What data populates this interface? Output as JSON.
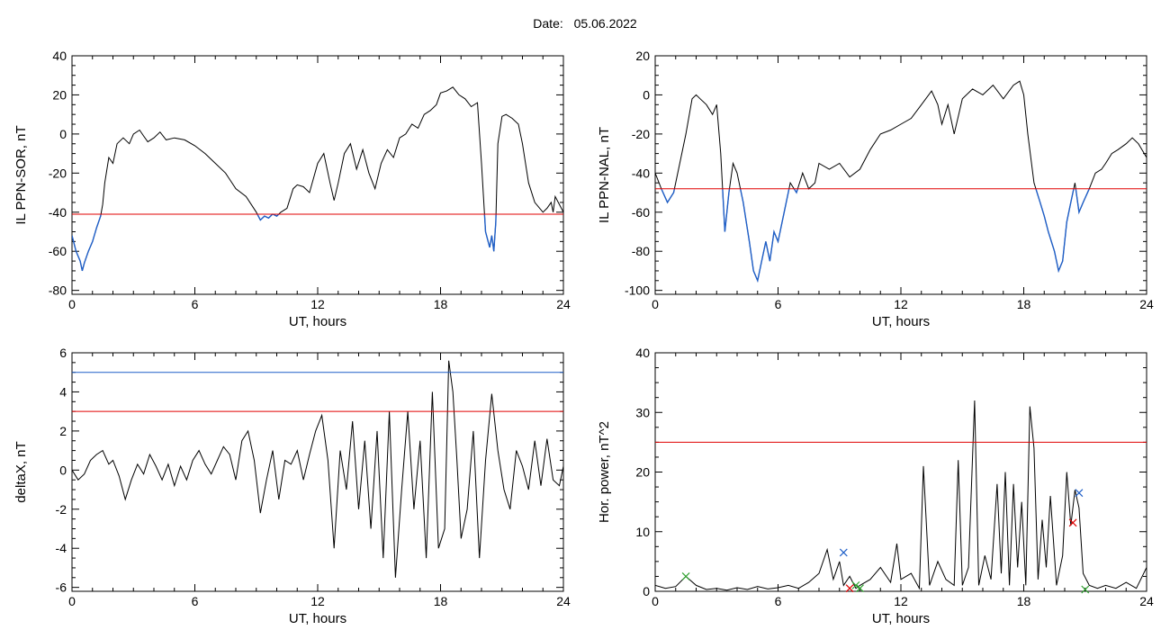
{
  "header": {
    "date_label": "Date:",
    "date_value": "05.06.2022"
  },
  "colors": {
    "trace": "#000000",
    "below_threshold": "#1f5fc8",
    "red_level": "#e00000",
    "blue_level": "#1f5fc8",
    "marker_green": "#2ca02c"
  },
  "chart_data": [
    {
      "id": "il-ppn-sor",
      "type": "line",
      "title": "",
      "xlabel": "UT, hours",
      "ylabel": "IL PPN-SOR, nT",
      "xlim": [
        0,
        24
      ],
      "ylim": [
        -82,
        40
      ],
      "xticks": [
        0,
        6,
        12,
        18,
        24
      ],
      "yticks": [
        -80,
        -60,
        -40,
        -20,
        0,
        20,
        40
      ],
      "thresholds": [
        {
          "y": -41,
          "color": "red"
        }
      ],
      "highlight_below": -41,
      "x": [
        0,
        0.2,
        0.4,
        0.5,
        0.6,
        0.8,
        1.0,
        1.2,
        1.4,
        1.5,
        1.6,
        1.8,
        2.0,
        2.2,
        2.5,
        2.8,
        3.0,
        3.3,
        3.5,
        3.7,
        4.0,
        4.3,
        4.6,
        5.0,
        5.5,
        6.0,
        6.5,
        7.0,
        7.5,
        8.0,
        8.5,
        9.0,
        9.2,
        9.4,
        9.6,
        9.8,
        10.0,
        10.2,
        10.5,
        10.8,
        11.0,
        11.3,
        11.6,
        12.0,
        12.3,
        12.6,
        12.8,
        13.0,
        13.3,
        13.6,
        13.9,
        14.2,
        14.5,
        14.8,
        15.1,
        15.4,
        15.7,
        16.0,
        16.3,
        16.6,
        16.9,
        17.2,
        17.5,
        17.8,
        18.0,
        18.3,
        18.6,
        18.9,
        19.2,
        19.5,
        19.8,
        20.0,
        20.2,
        20.4,
        20.5,
        20.6,
        20.7,
        20.8,
        21.0,
        21.2,
        21.5,
        21.8,
        22.0,
        22.3,
        22.6,
        23.0,
        23.2,
        23.4,
        23.5,
        23.6,
        23.8,
        24.0
      ],
      "y": [
        -52,
        -60,
        -65,
        -70,
        -66,
        -60,
        -55,
        -48,
        -42,
        -36,
        -25,
        -12,
        -15,
        -5,
        -2,
        -5,
        0,
        2,
        -1,
        -4,
        -2,
        1,
        -3,
        -2,
        -3,
        -6,
        -10,
        -15,
        -20,
        -28,
        -32,
        -40,
        -44,
        -42,
        -43,
        -41,
        -42,
        -40,
        -38,
        -28,
        -26,
        -27,
        -30,
        -15,
        -10,
        -25,
        -34,
        -25,
        -10,
        -5,
        -18,
        -8,
        -20,
        -28,
        -15,
        -8,
        -12,
        -2,
        0,
        5,
        3,
        10,
        12,
        15,
        21,
        22,
        24,
        20,
        18,
        14,
        16,
        -15,
        -50,
        -58,
        -52,
        -60,
        -45,
        -5,
        9,
        10,
        8,
        5,
        -5,
        -25,
        -35,
        -40,
        -38,
        -35,
        -40,
        -32,
        -36,
        -40
      ]
    },
    {
      "id": "il-ppn-nal",
      "type": "line",
      "title": "",
      "xlabel": "UT, hours",
      "ylabel": "IL PPN-NAL, nT",
      "xlim": [
        0,
        24
      ],
      "ylim": [
        -102,
        20
      ],
      "xticks": [
        0,
        6,
        12,
        18,
        24
      ],
      "yticks": [
        -100,
        -80,
        -60,
        -40,
        -20,
        0,
        20
      ],
      "thresholds": [
        {
          "y": -48,
          "color": "red"
        }
      ],
      "highlight_below": -48,
      "x": [
        0,
        0.3,
        0.6,
        0.9,
        1.2,
        1.5,
        1.8,
        2.0,
        2.2,
        2.5,
        2.8,
        3.0,
        3.2,
        3.4,
        3.6,
        3.8,
        4.0,
        4.3,
        4.6,
        4.8,
        5.0,
        5.2,
        5.4,
        5.6,
        5.8,
        6.0,
        6.3,
        6.6,
        6.9,
        7.2,
        7.5,
        7.8,
        8.0,
        8.5,
        9.0,
        9.5,
        10.0,
        10.5,
        11.0,
        11.5,
        12.0,
        12.5,
        13.0,
        13.5,
        13.8,
        14.0,
        14.3,
        14.6,
        15.0,
        15.5,
        16.0,
        16.5,
        17.0,
        17.5,
        17.8,
        18.0,
        18.2,
        18.5,
        18.8,
        19.0,
        19.2,
        19.5,
        19.7,
        19.9,
        20.1,
        20.3,
        20.5,
        20.7,
        20.9,
        21.2,
        21.5,
        21.8,
        22.0,
        22.3,
        22.6,
        23.0,
        23.3,
        23.6,
        24.0
      ],
      "y": [
        -40,
        -48,
        -55,
        -50,
        -35,
        -20,
        -2,
        0,
        -2,
        -5,
        -10,
        -5,
        -30,
        -70,
        -50,
        -35,
        -40,
        -55,
        -75,
        -90,
        -95,
        -85,
        -75,
        -85,
        -70,
        -75,
        -60,
        -45,
        -50,
        -40,
        -48,
        -45,
        -35,
        -38,
        -35,
        -42,
        -38,
        -28,
        -20,
        -18,
        -15,
        -12,
        -5,
        2,
        -5,
        -15,
        -5,
        -20,
        -2,
        3,
        0,
        5,
        -2,
        5,
        7,
        0,
        -20,
        -45,
        -55,
        -62,
        -70,
        -80,
        -90,
        -85,
        -65,
        -55,
        -45,
        -60,
        -55,
        -48,
        -40,
        -38,
        -35,
        -30,
        -28,
        -25,
        -22,
        -25,
        -32
      ]
    },
    {
      "id": "delta-x",
      "type": "line",
      "title": "",
      "xlabel": "UT, hours",
      "ylabel": "deltaX, nT",
      "xlim": [
        0,
        24
      ],
      "ylim": [
        -6.2,
        6
      ],
      "xticks": [
        0,
        6,
        12,
        18,
        24
      ],
      "yticks": [
        -6,
        -4,
        -2,
        0,
        2,
        4,
        6
      ],
      "thresholds": [
        {
          "y": 5.0,
          "color": "blue"
        },
        {
          "y": 3.0,
          "color": "red"
        }
      ],
      "x": [
        0,
        0.3,
        0.6,
        0.9,
        1.2,
        1.5,
        1.8,
        2.0,
        2.3,
        2.6,
        2.9,
        3.2,
        3.5,
        3.8,
        4.1,
        4.4,
        4.7,
        5.0,
        5.3,
        5.6,
        5.9,
        6.2,
        6.5,
        6.8,
        7.1,
        7.4,
        7.7,
        8.0,
        8.3,
        8.6,
        8.9,
        9.2,
        9.5,
        9.8,
        10.1,
        10.4,
        10.7,
        11.0,
        11.3,
        11.6,
        11.9,
        12.2,
        12.5,
        12.8,
        13.1,
        13.4,
        13.7,
        14.0,
        14.3,
        14.6,
        14.9,
        15.2,
        15.5,
        15.8,
        16.1,
        16.4,
        16.7,
        17.0,
        17.3,
        17.6,
        17.9,
        18.2,
        18.4,
        18.6,
        18.8,
        19.0,
        19.3,
        19.6,
        19.9,
        20.2,
        20.5,
        20.8,
        21.1,
        21.4,
        21.7,
        22.0,
        22.3,
        22.6,
        22.9,
        23.2,
        23.5,
        23.8,
        24.0
      ],
      "y": [
        0,
        -0.5,
        -0.2,
        0.5,
        0.8,
        1.0,
        0.3,
        0.5,
        -0.3,
        -1.5,
        -0.5,
        0.3,
        -0.2,
        0.8,
        0.2,
        -0.5,
        0.3,
        -0.8,
        0.2,
        -0.5,
        0.5,
        1.0,
        0.3,
        -0.2,
        0.5,
        1.2,
        0.8,
        -0.5,
        1.5,
        2.0,
        0.5,
        -2.2,
        -0.5,
        1.0,
        -1.5,
        0.5,
        0.3,
        1.0,
        -0.5,
        0.8,
        2.0,
        2.8,
        0.5,
        -4.0,
        1.0,
        -1.0,
        2.5,
        -2.0,
        1.5,
        -3.0,
        2.0,
        -4.5,
        3.0,
        -5.5,
        -1.0,
        3.0,
        -2.0,
        1.5,
        -4.5,
        4.0,
        -4.0,
        -3.0,
        5.6,
        4.0,
        0.5,
        -3.5,
        -2.0,
        2.0,
        -4.5,
        0.5,
        3.9,
        1.0,
        -1.0,
        -2.0,
        1.0,
        0.2,
        -1.0,
        1.5,
        -0.8,
        1.6,
        -0.5,
        -0.8,
        0.2
      ]
    },
    {
      "id": "hor-power",
      "type": "line",
      "title": "",
      "xlabel": "UT, hours",
      "ylabel": "Hor. power, nT^2",
      "xlim": [
        0,
        24
      ],
      "ylim": [
        0,
        40
      ],
      "xticks": [
        0,
        6,
        12,
        18,
        24
      ],
      "yticks": [
        0,
        10,
        20,
        30,
        40
      ],
      "thresholds": [
        {
          "y": 25,
          "color": "red"
        }
      ],
      "x": [
        0,
        0.5,
        1.0,
        1.5,
        2.0,
        2.5,
        3.0,
        3.5,
        4.0,
        4.5,
        5.0,
        5.5,
        6.0,
        6.5,
        7.0,
        7.5,
        8.0,
        8.4,
        8.7,
        9.0,
        9.2,
        9.5,
        9.8,
        10.0,
        10.5,
        11.0,
        11.5,
        11.8,
        12.0,
        12.5,
        12.9,
        13.1,
        13.4,
        13.8,
        14.2,
        14.6,
        14.8,
        15.0,
        15.3,
        15.6,
        15.8,
        16.1,
        16.4,
        16.7,
        16.9,
        17.1,
        17.3,
        17.5,
        17.7,
        17.9,
        18.1,
        18.3,
        18.5,
        18.7,
        18.9,
        19.1,
        19.3,
        19.6,
        19.9,
        20.1,
        20.3,
        20.5,
        20.7,
        20.9,
        21.2,
        21.6,
        22.0,
        22.5,
        23.0,
        23.5,
        24.0
      ],
      "y": [
        1,
        0.5,
        0.8,
        2.5,
        1.0,
        0.3,
        0.5,
        0.2,
        0.6,
        0.3,
        0.8,
        0.4,
        0.6,
        1.0,
        0.5,
        1.5,
        3.0,
        7.0,
        2.0,
        5.0,
        1.0,
        2.5,
        0.5,
        1.0,
        2.0,
        4.0,
        1.5,
        8.0,
        2.0,
        3.0,
        0.5,
        21.0,
        1.0,
        5.0,
        2.0,
        1.0,
        22.0,
        1.0,
        4.0,
        32.0,
        1.0,
        6.0,
        2.0,
        18.0,
        3.0,
        20.0,
        1.0,
        18.0,
        4.0,
        15.0,
        1.0,
        31.0,
        24.0,
        2.0,
        12.0,
        4.0,
        16.0,
        1.0,
        6.0,
        20.0,
        11.0,
        17.0,
        14.0,
        3.0,
        1.0,
        0.5,
        1.0,
        0.5,
        1.5,
        0.5,
        4.0
      ],
      "markers": [
        {
          "x": 1.5,
          "y": 2.5,
          "symbol": "x",
          "color": "green"
        },
        {
          "x": 9.2,
          "y": 6.5,
          "symbol": "x",
          "color": "blue"
        },
        {
          "x": 9.5,
          "y": 0.5,
          "symbol": "x",
          "color": "red"
        },
        {
          "x": 9.8,
          "y": 1.0,
          "symbol": "x",
          "color": "green"
        },
        {
          "x": 10.0,
          "y": 0.5,
          "symbol": "x",
          "color": "green"
        },
        {
          "x": 20.4,
          "y": 11.5,
          "symbol": "x",
          "color": "red"
        },
        {
          "x": 20.7,
          "y": 16.5,
          "symbol": "x",
          "color": "blue"
        },
        {
          "x": 21.0,
          "y": 0.3,
          "symbol": "x",
          "color": "green"
        }
      ]
    }
  ]
}
